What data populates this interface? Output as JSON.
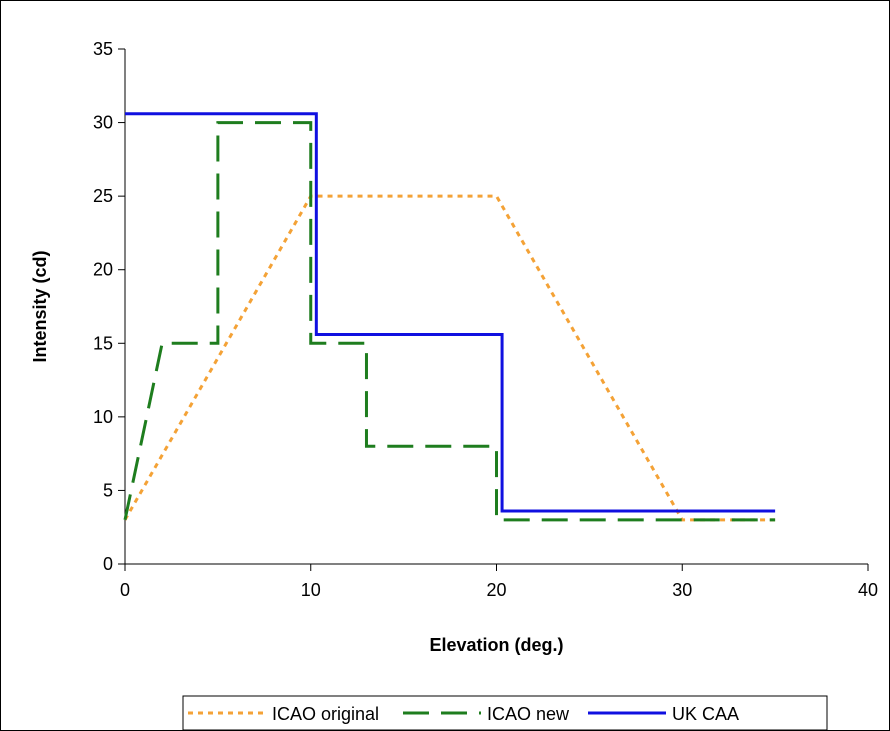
{
  "chart_data": {
    "type": "line",
    "title": "",
    "xlabel": "Elevation (deg.)",
    "ylabel": "Intensity (cd)",
    "xlim": [
      0,
      40
    ],
    "ylim": [
      0,
      35
    ],
    "xticks": [
      "0",
      "10",
      "20",
      "30",
      "40"
    ],
    "yticks": [
      "0",
      "5",
      "10",
      "15",
      "20",
      "25",
      "30",
      "35"
    ],
    "grid": false,
    "legend_position": "bottom",
    "series": [
      {
        "name": "ICAO original",
        "color": "#f4a236",
        "style": "dotted",
        "x": [
          0,
          10,
          20,
          30,
          35
        ],
        "y": [
          3,
          25,
          25,
          3,
          3
        ]
      },
      {
        "name": "ICAO new",
        "color": "#1e7d1e",
        "style": "dashed",
        "x": [
          0,
          2,
          5,
          5,
          10,
          10,
          13,
          13,
          20,
          20,
          35
        ],
        "y": [
          3,
          15,
          15,
          30,
          30,
          15,
          15,
          8,
          8,
          3,
          3
        ]
      },
      {
        "name": "UK CAA",
        "color": "#1010e0",
        "style": "solid",
        "x": [
          0,
          10.3,
          10.3,
          20.3,
          20.3,
          35
        ],
        "y": [
          30.6,
          30.6,
          15.6,
          15.6,
          3.6,
          3.6
        ]
      }
    ]
  }
}
